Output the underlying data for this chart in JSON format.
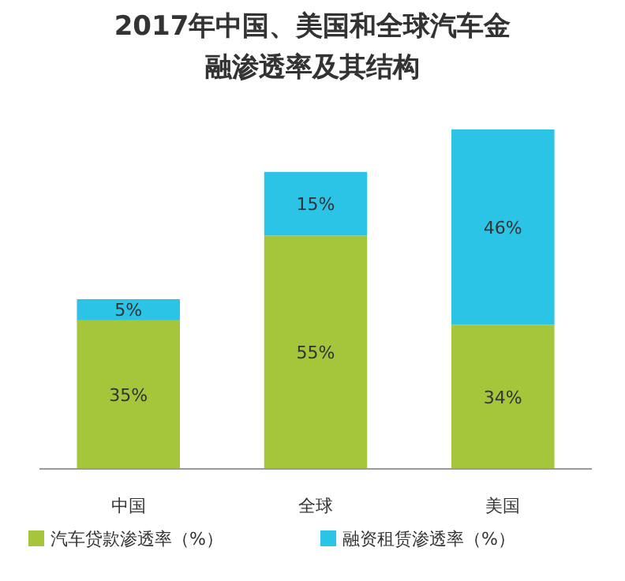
{
  "chart_data": {
    "type": "bar",
    "title": "2017年中国、美国和全球汽车金融渗透率及其结构",
    "categories": [
      "中国",
      "全球",
      "美国"
    ],
    "stacked": true,
    "legend": "bottom",
    "series": [
      {
        "name": "汽车贷款渗透率（%）",
        "color": "#a5c63b",
        "values": [
          35,
          55,
          34
        ],
        "value_labels": [
          "35%",
          "55%",
          "34%"
        ]
      },
      {
        "name": "融资租赁渗透率（%）",
        "color": "#2bc4e6",
        "values": [
          5,
          15,
          46
        ],
        "value_labels": [
          "5%",
          "15%",
          "46%"
        ]
      }
    ]
  }
}
